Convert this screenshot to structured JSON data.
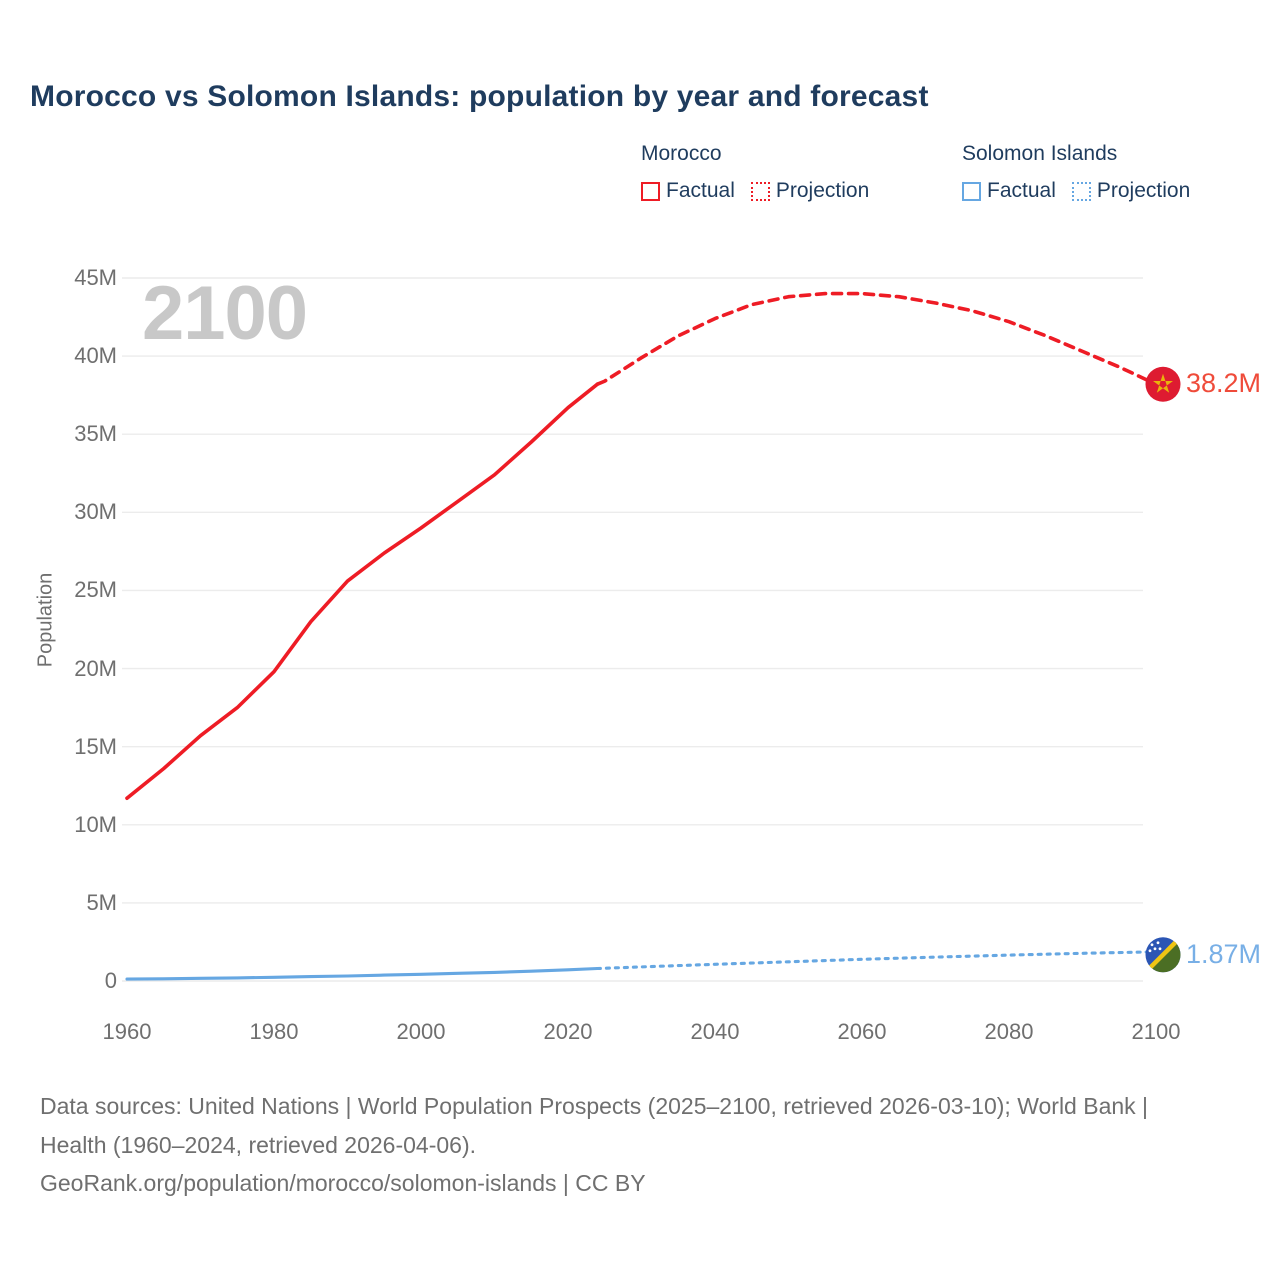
{
  "title": "Morocco vs Solomon Islands: population by year and forecast",
  "watermark_year": "2100",
  "legend": {
    "groups": [
      {
        "name": "Morocco",
        "items": [
          {
            "label": "Factual",
            "style": "solid"
          },
          {
            "label": "Projection",
            "style": "dotted"
          }
        ]
      },
      {
        "name": "Solomon Islands",
        "items": [
          {
            "label": "Factual",
            "style": "solid"
          },
          {
            "label": "Projection",
            "style": "dotted"
          }
        ]
      }
    ]
  },
  "y_axis": {
    "title": "Population",
    "tick_labels": [
      "0",
      "5M",
      "10M",
      "15M",
      "20M",
      "25M",
      "30M",
      "35M",
      "40M",
      "45M"
    ]
  },
  "x_axis": {
    "tick_labels": [
      "1960",
      "1980",
      "2000",
      "2020",
      "2040",
      "2060",
      "2080",
      "2100"
    ]
  },
  "footer": {
    "sources": "Data sources: United Nations | World Population Prospects (2025–2100, retrieved 2026-03-10); World Bank | Health (1960–2024, retrieved 2026-04-06).",
    "attribution": "GeoRank.org/population/morocco/solomon-islands | CC BY"
  },
  "colors": {
    "navy": "#1f3c5e",
    "axis": "#6f6f6f",
    "watermark": "#c8c8c8",
    "gridline": "#ececec",
    "red": "#ee1c25",
    "blue": "#66a7e2",
    "red_label": "#ef4b3a",
    "blue_label": "#78afe6",
    "flag_morocco_bg": "#de1b31",
    "flag_morocco_star": "#e9b30c",
    "flag_si_blue": "#2b55b4",
    "flag_si_green": "#4b6e24",
    "flag_si_yellow": "#efc514"
  },
  "chart_data": {
    "type": "line",
    "title": "Morocco vs Solomon Islands: population by year and forecast",
    "xlabel": "",
    "ylabel": "Population",
    "x_range": [
      1960,
      2100
    ],
    "y_range_millions": [
      0,
      45
    ],
    "x_ticks": [
      1960,
      1980,
      2000,
      2020,
      2040,
      2060,
      2080,
      2100
    ],
    "y_ticks_millions": [
      0,
      5,
      10,
      15,
      20,
      25,
      30,
      35,
      40,
      45
    ],
    "grid": "horizontal",
    "legend_position": "top-right",
    "units": "millions of people",
    "series": [
      {
        "id": "morocco-factual",
        "name": "Morocco — Factual",
        "color_key": "red",
        "line_style": "solid",
        "dash": null,
        "points": [
          [
            1960,
            11.7
          ],
          [
            1965,
            13.6
          ],
          [
            1970,
            15.7
          ],
          [
            1975,
            17.5
          ],
          [
            1980,
            19.8
          ],
          [
            1985,
            23.0
          ],
          [
            1990,
            25.6
          ],
          [
            1995,
            27.4
          ],
          [
            2000,
            29.0
          ],
          [
            2005,
            30.7
          ],
          [
            2010,
            32.4
          ],
          [
            2015,
            34.5
          ],
          [
            2020,
            36.7
          ],
          [
            2024,
            38.2
          ]
        ]
      },
      {
        "id": "morocco-projection",
        "name": "Morocco — Projection",
        "color_key": "red",
        "line_style": "dashed",
        "dash": "9 7",
        "points": [
          [
            2024,
            38.2
          ],
          [
            2025,
            38.4
          ],
          [
            2030,
            39.9
          ],
          [
            2035,
            41.3
          ],
          [
            2040,
            42.4
          ],
          [
            2045,
            43.3
          ],
          [
            2050,
            43.8
          ],
          [
            2055,
            44.0
          ],
          [
            2060,
            44.0
          ],
          [
            2065,
            43.8
          ],
          [
            2070,
            43.4
          ],
          [
            2075,
            42.9
          ],
          [
            2080,
            42.2
          ],
          [
            2085,
            41.3
          ],
          [
            2090,
            40.3
          ],
          [
            2095,
            39.3
          ],
          [
            2100,
            38.2
          ]
        ]
      },
      {
        "id": "solomon-islands-factual",
        "name": "Solomon Islands — Factual",
        "color_key": "blue",
        "line_style": "solid",
        "dash": null,
        "points": [
          [
            1960,
            0.12
          ],
          [
            1965,
            0.14
          ],
          [
            1970,
            0.17
          ],
          [
            1975,
            0.2
          ],
          [
            1980,
            0.24
          ],
          [
            1985,
            0.28
          ],
          [
            1990,
            0.32
          ],
          [
            1995,
            0.38
          ],
          [
            2000,
            0.43
          ],
          [
            2005,
            0.49
          ],
          [
            2010,
            0.55
          ],
          [
            2015,
            0.63
          ],
          [
            2020,
            0.72
          ],
          [
            2024,
            0.8
          ]
        ]
      },
      {
        "id": "solomon-islands-projection",
        "name": "Solomon Islands — Projection",
        "color_key": "blue",
        "line_style": "dashed",
        "dash": "3 6",
        "points": [
          [
            2024,
            0.8
          ],
          [
            2030,
            0.9
          ],
          [
            2040,
            1.07
          ],
          [
            2050,
            1.23
          ],
          [
            2060,
            1.39
          ],
          [
            2070,
            1.53
          ],
          [
            2080,
            1.66
          ],
          [
            2090,
            1.77
          ],
          [
            2100,
            1.87
          ]
        ]
      }
    ],
    "end_markers": [
      {
        "series": "Morocco",
        "year": 2100,
        "value_millions": 38.2,
        "label": "38.2M"
      },
      {
        "series": "Solomon Islands",
        "year": 2100,
        "value_millions": 1.87,
        "label": "1.87M"
      }
    ]
  }
}
